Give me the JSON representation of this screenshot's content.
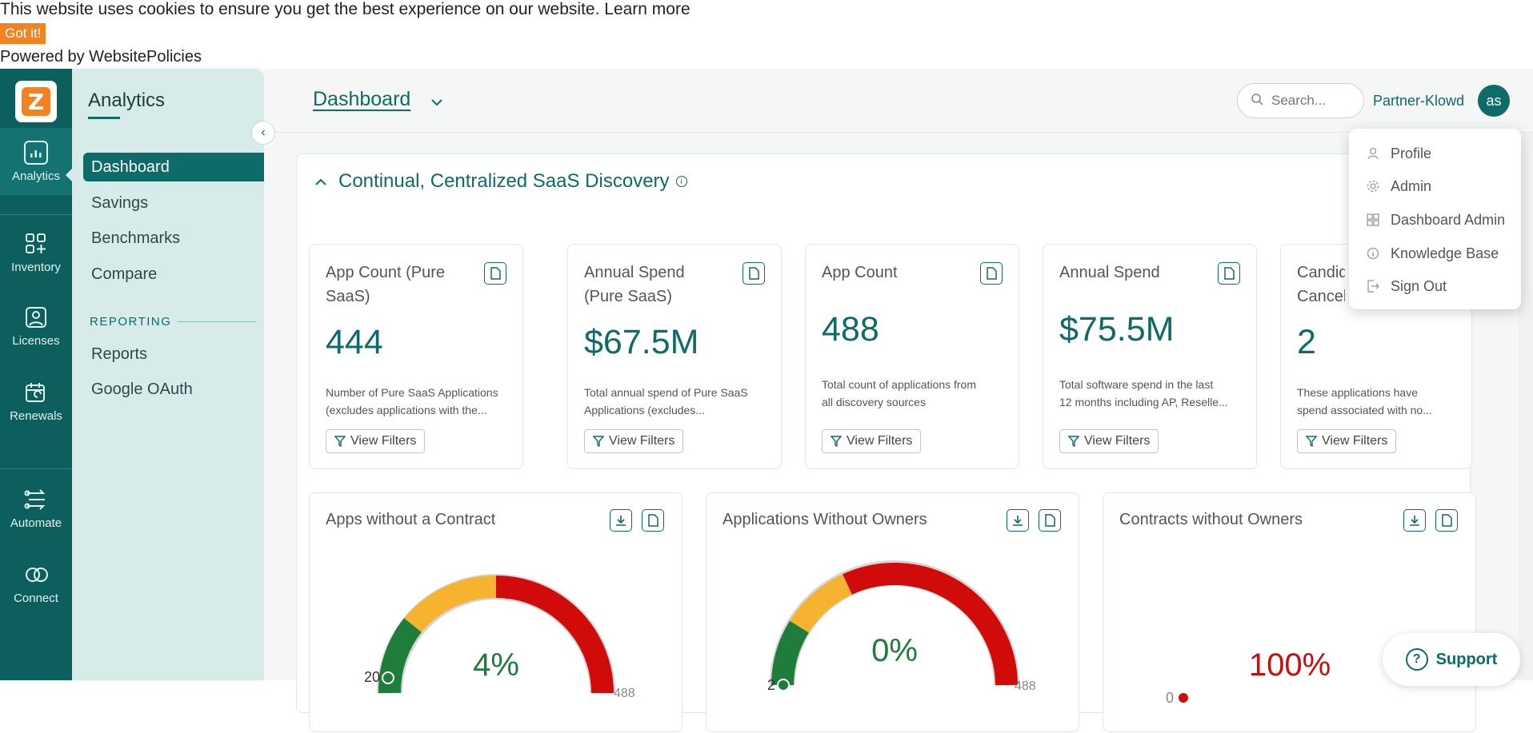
{
  "cookie": {
    "message": "This website uses cookies to ensure you get the best experience on our website. Learn more",
    "button": "Got it!",
    "powered": "Powered by WebsitePolicies"
  },
  "rail": {
    "logo_letter": "Z",
    "items": [
      {
        "label": "Analytics",
        "icon": "chart-icon"
      },
      {
        "label": "Inventory",
        "icon": "grid-icon"
      },
      {
        "label": "Licenses",
        "icon": "id-badge-icon"
      },
      {
        "label": "Renewals",
        "icon": "calendar-icon"
      },
      {
        "label": "Automate",
        "icon": "flow-icon"
      },
      {
        "label": "Connect",
        "icon": "link-rings-icon"
      }
    ]
  },
  "subnav": {
    "title": "Analytics",
    "items": [
      "Dashboard",
      "Savings",
      "Benchmarks",
      "Compare"
    ],
    "section": "REPORTING",
    "report_items": [
      "Reports",
      "Google OAuth"
    ]
  },
  "header": {
    "title": "Dashboard",
    "search_placeholder": "Search...",
    "partner": "Partner-Klowd",
    "avatar": "as"
  },
  "panel": {
    "title": "Continual, Centralized SaaS Discovery",
    "view_filters": "View Filters",
    "cards": [
      {
        "title": "App Count (Pure SaaS)",
        "value": "444",
        "desc1": "Number of Pure SaaS Applications",
        "desc2": "(excludes applications with the..."
      },
      {
        "title": "Annual Spend (Pure SaaS)",
        "value": "$67.5M",
        "desc1": "Total annual spend of Pure SaaS",
        "desc2": "Applications (excludes..."
      },
      {
        "title": "App Count",
        "value": "488",
        "desc1": "Total count of applications from",
        "desc2": "all discovery sources"
      },
      {
        "title": "Annual Spend",
        "value": "$75.5M",
        "desc1": "Total software spend in the last",
        "desc2": "12 months including AP, Reselle..."
      },
      {
        "title": "Candid Cancel",
        "value": "2",
        "desc1": "These applications have",
        "desc2": "spend associated with no..."
      }
    ],
    "gauges": [
      {
        "title": "Apps without a Contract",
        "percent": "4%",
        "min": "20",
        "max": "488"
      },
      {
        "title": "Applications Without Owners",
        "percent": "0%",
        "min": "2",
        "max": "488"
      },
      {
        "title": "Contracts without Owners",
        "percent": "100%",
        "min": "0",
        "max": ""
      }
    ]
  },
  "dropdown": {
    "items": [
      {
        "label": "Profile",
        "icon": "user-icon"
      },
      {
        "label": "Admin",
        "icon": "gear-icon"
      },
      {
        "label": "Dashboard Admin",
        "icon": "dashboard-icon"
      },
      {
        "label": "Knowledge Base",
        "icon": "info-icon"
      },
      {
        "label": "Sign Out",
        "icon": "sign-out-icon"
      }
    ]
  },
  "support": {
    "label": "Support"
  },
  "colors": {
    "primary": "#0d6b69",
    "rail": "#0d5f5e",
    "accent": "#f58220",
    "red": "#d10a0a",
    "green": "#1e7d3a",
    "yellow": "#f6b330"
  }
}
